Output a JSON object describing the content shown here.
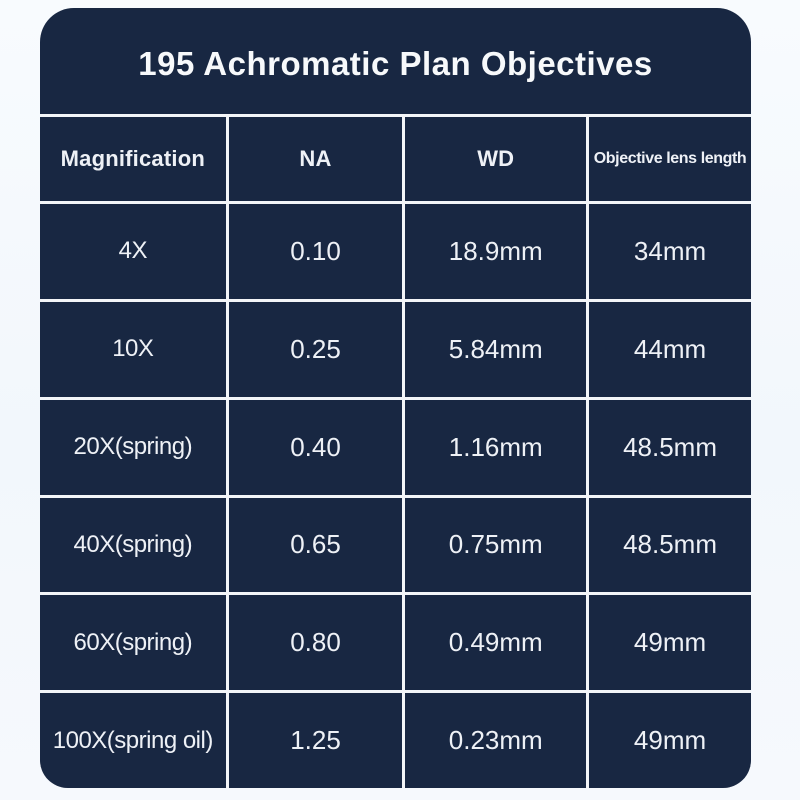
{
  "page": {
    "background_color": "#f4f8fc"
  },
  "card": {
    "background_color": "#182742",
    "line_color": "#f3f5f8",
    "text_color": "#eef1f6",
    "title": "195 Achromatic Plan Objectives"
  },
  "chart_data": {
    "type": "table",
    "title": "195 Achromatic Plan Objectives",
    "columns": [
      "Magnification",
      "NA",
      "WD",
      "Objective lens length"
    ],
    "rows": [
      [
        "4X",
        "0.10",
        "18.9mm",
        "34mm"
      ],
      [
        "10X",
        "0.25",
        "5.84mm",
        "44mm"
      ],
      [
        "20X(spring)",
        "0.40",
        "1.16mm",
        "48.5mm"
      ],
      [
        "40X(spring)",
        "0.65",
        "0.75mm",
        "48.5mm"
      ],
      [
        "60X(spring)",
        "0.80",
        "0.49mm",
        "49mm"
      ],
      [
        "100X(spring oil)",
        "1.25",
        "0.23mm",
        "49mm"
      ]
    ],
    "layout": {
      "grid": "on",
      "header_row": true,
      "rounded_card": true
    }
  }
}
